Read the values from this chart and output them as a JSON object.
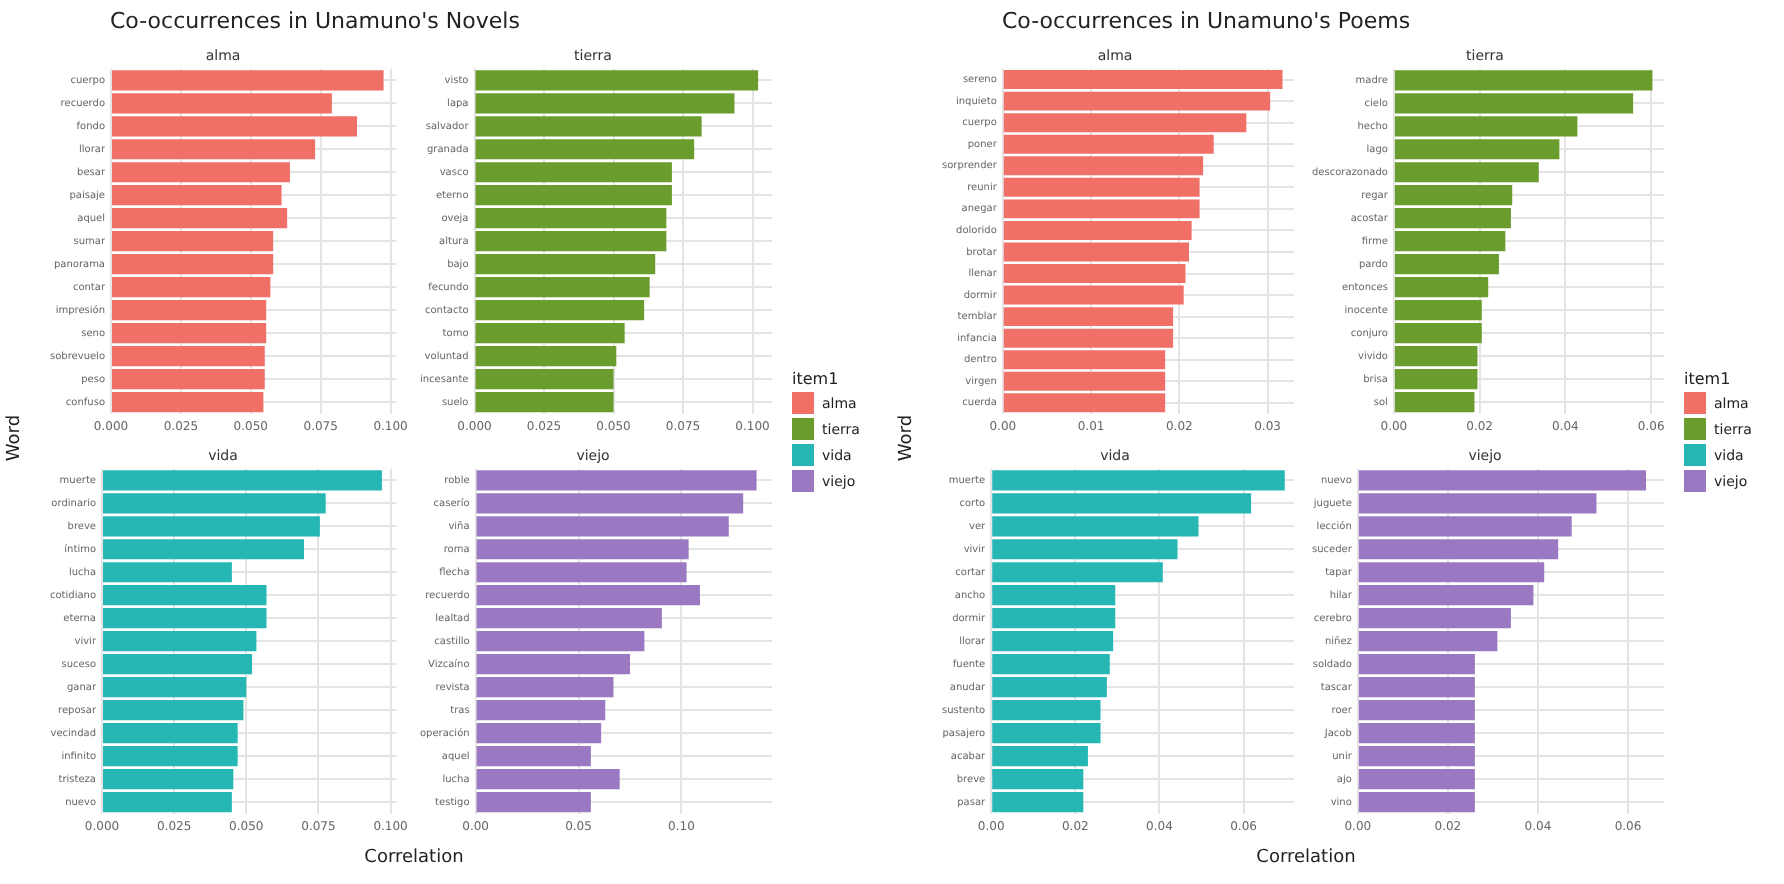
{
  "chart_data": [
    {
      "type": "bar",
      "orientation": "horizontal",
      "title": "Co-occurrences in Unamuno's Novels",
      "subtitle": "alma",
      "grid": true,
      "categories": [
        "cuerpo",
        "recuerdo",
        "fondo",
        "llorar",
        "besar",
        "paisaje",
        "aquel",
        "sumar",
        "panorama",
        "contar",
        "impresión",
        "seno",
        "sobrevuelo",
        "peso",
        "confuso"
      ],
      "series": [
        {
          "name": "alma",
          "color": "#f07068",
          "values": [
            0.0975,
            0.079,
            0.088,
            0.073,
            0.064,
            0.061,
            0.063,
            0.058,
            0.058,
            0.057,
            0.0555,
            0.0555,
            0.055,
            0.055,
            0.0545
          ]
        }
      ],
      "xlim": [
        0,
        0.102
      ],
      "xticks": [
        {
          "value": 0,
          "label": "0.000"
        },
        0.025,
        {
          "value": 0.05,
          "label": "0.050"
        },
        0.075,
        {
          "value": 0.1,
          "label": "0.100"
        }
      ]
    },
    {
      "type": "bar",
      "orientation": "horizontal",
      "subtitle": "tierra",
      "grid": true,
      "legend": "right",
      "legend_title": "item1",
      "categories": [
        "visto",
        "lapa",
        "salvador",
        "granada",
        "vasco",
        "eterno",
        "oveja",
        "altura",
        "bajo",
        "fecundo",
        "contacto",
        "tomo",
        "voluntad",
        "incesante",
        "suelo"
      ],
      "series": [
        {
          "name": "tierra",
          "color": "#6b9c2e",
          "values": [
            0.102,
            0.0935,
            0.0817,
            0.079,
            0.071,
            0.071,
            0.069,
            0.069,
            0.065,
            0.063,
            0.061,
            0.054,
            0.051,
            0.05,
            0.05
          ]
        }
      ],
      "xlim": [
        0,
        0.107
      ],
      "xticks": [
        {
          "value": 0,
          "label": "0.000"
        },
        0.025,
        {
          "value": 0.05,
          "label": "0.050"
        },
        0.075,
        {
          "value": 0.1,
          "label": "0.100"
        }
      ]
    },
    {
      "type": "bar",
      "orientation": "horizontal",
      "subtitle": "vida",
      "grid": true,
      "xlabel": "Correlation",
      "ylabel": "Word",
      "categories": [
        "muerte",
        "ordinario",
        "breve",
        "íntimo",
        "lucha",
        "cotidiano",
        "eterna",
        "vivir",
        "suceso",
        "ganar",
        "reposar",
        "vecindad",
        "infinito",
        "tristeza",
        "nuevo"
      ],
      "series": [
        {
          "name": "vida",
          "color": "#26b7b4",
          "values": [
            0.097,
            0.0775,
            0.0755,
            0.07,
            0.045,
            0.057,
            0.057,
            0.0535,
            0.052,
            0.05,
            0.049,
            0.047,
            0.047,
            0.0455,
            0.045
          ]
        }
      ],
      "xlim": [
        0,
        0.102
      ],
      "xticks": [
        {
          "value": 0,
          "label": "0.000"
        },
        0.025,
        {
          "value": 0.05,
          "label": "0.050"
        },
        0.075,
        {
          "value": 0.1,
          "label": "0.100"
        }
      ]
    },
    {
      "type": "bar",
      "orientation": "horizontal",
      "subtitle": "viejo",
      "grid": true,
      "categories": [
        "roble",
        "caserío",
        "viña",
        "roma",
        "flecha",
        "recuerdo",
        "lealtad",
        "castillo",
        "Vizcaíno",
        "revista",
        "tras",
        "operación",
        "aquel",
        "lucha",
        "testigo"
      ],
      "series": [
        {
          "name": "viejo",
          "color": "#9b78c2",
          "values": [
            0.1365,
            0.13,
            0.123,
            0.1035,
            0.1025,
            0.109,
            0.0905,
            0.082,
            0.075,
            0.067,
            0.063,
            0.061,
            0.056,
            0.07,
            0.056
          ]
        }
      ],
      "xlim": [
        0,
        0.144
      ],
      "xticks": [
        {
          "value": 0,
          "label": "0.00"
        },
        0.05,
        {
          "value": 0.1,
          "label": "0.10"
        }
      ]
    },
    {
      "type": "bar",
      "orientation": "horizontal",
      "title": "Co-occurrences in Unamuno's Poems",
      "subtitle": "alma",
      "grid": true,
      "categories": [
        "sereno",
        "inquieto",
        "cuerpo",
        "poner",
        "sorprender",
        "reunir",
        "anegar",
        "dolorido",
        "brotar",
        "llenar",
        "dormir",
        "temblar",
        "infancia",
        "dentro",
        "virgen",
        "cuerda"
      ],
      "series": [
        {
          "name": "alma",
          "color": "#f07068",
          "values": [
            0.0317,
            0.0303,
            0.0276,
            0.0239,
            0.0227,
            0.0223,
            0.0223,
            0.0214,
            0.0211,
            0.0207,
            0.0205,
            0.0193,
            0.0193,
            0.0184,
            0.0184,
            0.0184
          ]
        }
      ],
      "xlim": [
        0,
        0.033
      ],
      "xticks": [
        {
          "value": 0,
          "label": "0.00"
        },
        0.01,
        0.02,
        0.03
      ]
    },
    {
      "type": "bar",
      "orientation": "horizontal",
      "subtitle": "tierra",
      "grid": true,
      "legend": "right",
      "legend_title": "item1",
      "categories": [
        "madre",
        "cielo",
        "hecho",
        "lago",
        "descorazonado",
        "regar",
        "acostar",
        "firme",
        "pardo",
        "entonces",
        "inocente",
        "conjuro",
        "vivido",
        "brisa",
        "sol"
      ],
      "series": [
        {
          "name": "tierra",
          "color": "#6b9c2e",
          "values": [
            0.0603,
            0.0558,
            0.0428,
            0.0386,
            0.0338,
            0.0276,
            0.0273,
            0.026,
            0.0245,
            0.022,
            0.0205,
            0.0205,
            0.0195,
            0.0195,
            0.0188
          ]
        }
      ],
      "xlim": [
        0,
        0.063
      ],
      "xticks": [
        {
          "value": 0,
          "label": "0.00"
        },
        0.02,
        0.04,
        0.06
      ]
    },
    {
      "type": "bar",
      "orientation": "horizontal",
      "subtitle": "vida",
      "grid": true,
      "xlabel": "Correlation",
      "ylabel": "Word",
      "categories": [
        "muerte",
        "corto",
        "ver",
        "vivir",
        "cortar",
        "ancho",
        "dormir",
        "llorar",
        "fuente",
        "anudar",
        "sustento",
        "pasajero",
        "acabar",
        "breve",
        "pasar"
      ],
      "series": [
        {
          "name": "vida",
          "color": "#26b7b4",
          "values": [
            0.0698,
            0.0618,
            0.0493,
            0.0443,
            0.0408,
            0.0295,
            0.0295,
            0.029,
            0.0282,
            0.0275,
            0.026,
            0.026,
            0.023,
            0.0219,
            0.0219
          ]
        }
      ],
      "xlim": [
        0,
        0.072
      ],
      "xticks": [
        {
          "value": 0,
          "label": "0.00"
        },
        0.02,
        0.04,
        0.06
      ]
    },
    {
      "type": "bar",
      "orientation": "horizontal",
      "subtitle": "viejo",
      "grid": true,
      "categories": [
        "nuevo",
        "juguete",
        "lección",
        "suceder",
        "tapar",
        "hilar",
        "cerebro",
        "niñez",
        "soldado",
        "tascar",
        "roer",
        "Jacob",
        "unir",
        "ajo",
        "vino"
      ],
      "series": [
        {
          "name": "viejo",
          "color": "#9b78c2",
          "values": [
            0.064,
            0.053,
            0.0475,
            0.0445,
            0.0414,
            0.039,
            0.034,
            0.031,
            0.026,
            0.026,
            0.026,
            0.026,
            0.026,
            0.026,
            0.026
          ]
        }
      ],
      "xlim": [
        0,
        0.068
      ],
      "xticks": [
        {
          "value": 0,
          "label": "0.00"
        },
        0.02,
        0.04,
        0.06
      ]
    }
  ]
}
